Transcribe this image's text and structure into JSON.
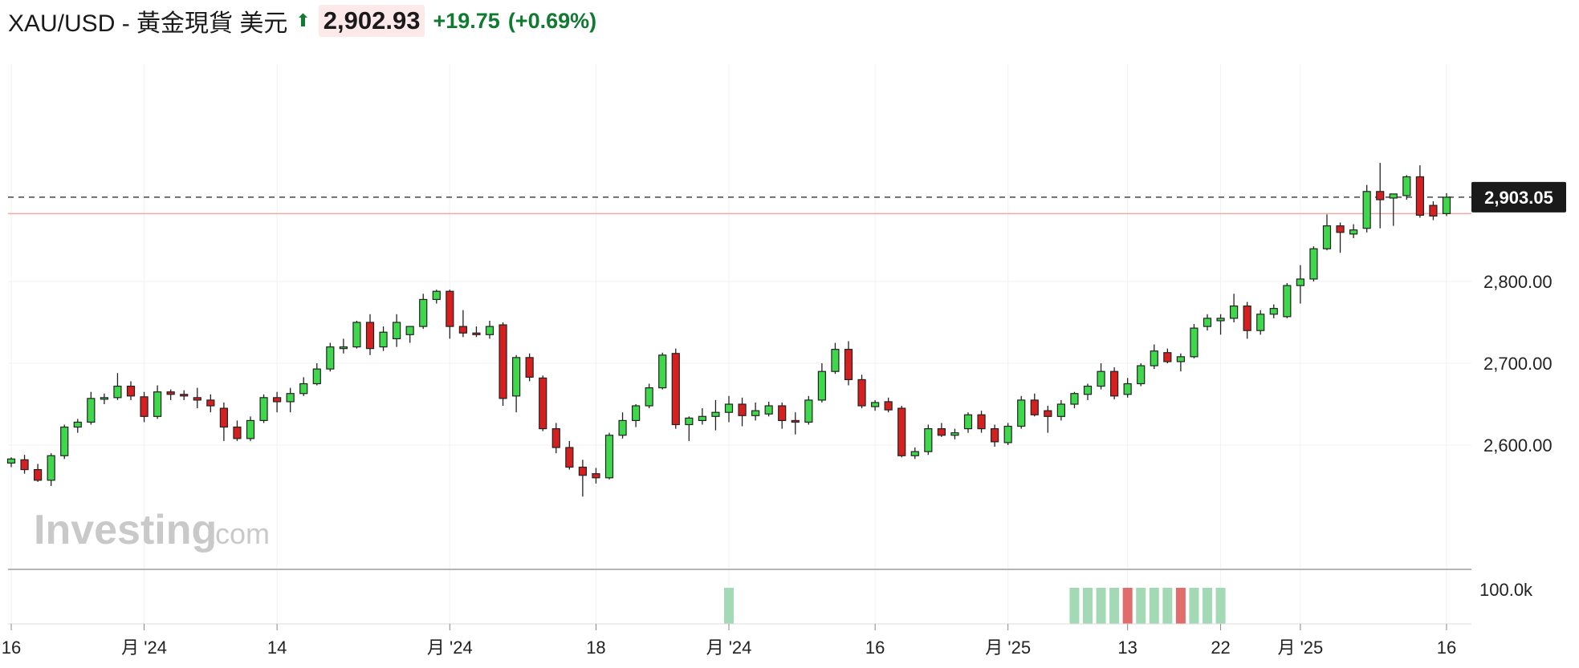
{
  "header": {
    "symbol": "XAU/USD - 黃金現貨 美元",
    "price": "2,902.93",
    "change": "+19.75",
    "change_pct": "(+0.69%)",
    "up_color": "#0f7a30",
    "arrow_icon": "up-arrow-icon"
  },
  "watermark": {
    "brand": "Investing",
    "suffix": ".com"
  },
  "chart_data": {
    "type": "candlestick",
    "ylim": [
      2515,
      2985
    ],
    "yticks": [
      2600,
      2700,
      2800
    ],
    "ytick_labels": [
      "2,600.00",
      "2,700.00",
      "2,800.00"
    ],
    "last_price": 2903.05,
    "last_price_label": "2,903.05",
    "prev_close": 2883,
    "x_tick_labels": [
      {
        "i": 0,
        "label": "16"
      },
      {
        "i": 10,
        "label": "月 '24"
      },
      {
        "i": 20,
        "label": "14"
      },
      {
        "i": 33,
        "label": "月 '24"
      },
      {
        "i": 44,
        "label": "18"
      },
      {
        "i": 54,
        "label": "月 '24"
      },
      {
        "i": 65,
        "label": "16"
      },
      {
        "i": 75,
        "label": "月 '25"
      },
      {
        "i": 84,
        "label": "13"
      },
      {
        "i": 91,
        "label": "22"
      },
      {
        "i": 97,
        "label": "月 '25"
      },
      {
        "i": 108,
        "label": "16"
      }
    ],
    "candles": [
      {
        "o": 2578,
        "h": 2585,
        "l": 2573,
        "c": 2583
      },
      {
        "o": 2582,
        "h": 2588,
        "l": 2565,
        "c": 2570
      },
      {
        "o": 2570,
        "h": 2577,
        "l": 2555,
        "c": 2557
      },
      {
        "o": 2557,
        "h": 2590,
        "l": 2550,
        "c": 2587
      },
      {
        "o": 2587,
        "h": 2625,
        "l": 2583,
        "c": 2622
      },
      {
        "o": 2622,
        "h": 2632,
        "l": 2615,
        "c": 2628
      },
      {
        "o": 2628,
        "h": 2665,
        "l": 2625,
        "c": 2657
      },
      {
        "o": 2657,
        "h": 2663,
        "l": 2650,
        "c": 2658
      },
      {
        "o": 2658,
        "h": 2688,
        "l": 2655,
        "c": 2672
      },
      {
        "o": 2672,
        "h": 2678,
        "l": 2655,
        "c": 2660
      },
      {
        "o": 2659,
        "h": 2665,
        "l": 2628,
        "c": 2635
      },
      {
        "o": 2635,
        "h": 2673,
        "l": 2632,
        "c": 2665
      },
      {
        "o": 2665,
        "h": 2668,
        "l": 2655,
        "c": 2662
      },
      {
        "o": 2662,
        "h": 2667,
        "l": 2655,
        "c": 2660
      },
      {
        "o": 2658,
        "h": 2670,
        "l": 2645,
        "c": 2655
      },
      {
        "o": 2655,
        "h": 2662,
        "l": 2640,
        "c": 2648
      },
      {
        "o": 2645,
        "h": 2652,
        "l": 2605,
        "c": 2622
      },
      {
        "o": 2622,
        "h": 2630,
        "l": 2605,
        "c": 2608
      },
      {
        "o": 2608,
        "h": 2635,
        "l": 2605,
        "c": 2630
      },
      {
        "o": 2630,
        "h": 2662,
        "l": 2627,
        "c": 2658
      },
      {
        "o": 2658,
        "h": 2665,
        "l": 2640,
        "c": 2653
      },
      {
        "o": 2653,
        "h": 2670,
        "l": 2640,
        "c": 2663
      },
      {
        "o": 2663,
        "h": 2683,
        "l": 2660,
        "c": 2675
      },
      {
        "o": 2675,
        "h": 2700,
        "l": 2673,
        "c": 2693
      },
      {
        "o": 2693,
        "h": 2725,
        "l": 2690,
        "c": 2720
      },
      {
        "o": 2718,
        "h": 2730,
        "l": 2712,
        "c": 2720
      },
      {
        "o": 2720,
        "h": 2752,
        "l": 2718,
        "c": 2750
      },
      {
        "o": 2750,
        "h": 2760,
        "l": 2710,
        "c": 2718
      },
      {
        "o": 2720,
        "h": 2745,
        "l": 2715,
        "c": 2738
      },
      {
        "o": 2730,
        "h": 2760,
        "l": 2720,
        "c": 2750
      },
      {
        "o": 2735,
        "h": 2745,
        "l": 2725,
        "c": 2745
      },
      {
        "o": 2745,
        "h": 2785,
        "l": 2742,
        "c": 2778
      },
      {
        "o": 2778,
        "h": 2790,
        "l": 2773,
        "c": 2788
      },
      {
        "o": 2788,
        "h": 2790,
        "l": 2730,
        "c": 2745
      },
      {
        "o": 2745,
        "h": 2765,
        "l": 2732,
        "c": 2737
      },
      {
        "o": 2737,
        "h": 2745,
        "l": 2732,
        "c": 2735
      },
      {
        "o": 2735,
        "h": 2752,
        "l": 2730,
        "c": 2745
      },
      {
        "o": 2747,
        "h": 2750,
        "l": 2648,
        "c": 2657
      },
      {
        "o": 2660,
        "h": 2710,
        "l": 2640,
        "c": 2707
      },
      {
        "o": 2707,
        "h": 2712,
        "l": 2678,
        "c": 2683
      },
      {
        "o": 2682,
        "h": 2685,
        "l": 2617,
        "c": 2620
      },
      {
        "o": 2620,
        "h": 2627,
        "l": 2590,
        "c": 2597
      },
      {
        "o": 2597,
        "h": 2605,
        "l": 2570,
        "c": 2573
      },
      {
        "o": 2573,
        "h": 2582,
        "l": 2537,
        "c": 2563
      },
      {
        "o": 2565,
        "h": 2572,
        "l": 2553,
        "c": 2560
      },
      {
        "o": 2560,
        "h": 2615,
        "l": 2558,
        "c": 2612
      },
      {
        "o": 2612,
        "h": 2640,
        "l": 2608,
        "c": 2630
      },
      {
        "o": 2630,
        "h": 2650,
        "l": 2622,
        "c": 2648
      },
      {
        "o": 2648,
        "h": 2675,
        "l": 2645,
        "c": 2670
      },
      {
        "o": 2670,
        "h": 2713,
        "l": 2668,
        "c": 2710
      },
      {
        "o": 2712,
        "h": 2718,
        "l": 2620,
        "c": 2625
      },
      {
        "o": 2625,
        "h": 2635,
        "l": 2605,
        "c": 2633
      },
      {
        "o": 2630,
        "h": 2645,
        "l": 2625,
        "c": 2635
      },
      {
        "o": 2635,
        "h": 2655,
        "l": 2618,
        "c": 2640
      },
      {
        "o": 2640,
        "h": 2660,
        "l": 2628,
        "c": 2650
      },
      {
        "o": 2650,
        "h": 2658,
        "l": 2623,
        "c": 2636
      },
      {
        "o": 2636,
        "h": 2652,
        "l": 2630,
        "c": 2642
      },
      {
        "o": 2638,
        "h": 2653,
        "l": 2635,
        "c": 2648
      },
      {
        "o": 2648,
        "h": 2652,
        "l": 2620,
        "c": 2630
      },
      {
        "o": 2630,
        "h": 2640,
        "l": 2613,
        "c": 2628
      },
      {
        "o": 2628,
        "h": 2660,
        "l": 2625,
        "c": 2655
      },
      {
        "o": 2655,
        "h": 2700,
        "l": 2652,
        "c": 2690
      },
      {
        "o": 2690,
        "h": 2725,
        "l": 2687,
        "c": 2717
      },
      {
        "o": 2717,
        "h": 2727,
        "l": 2673,
        "c": 2680
      },
      {
        "o": 2680,
        "h": 2686,
        "l": 2645,
        "c": 2648
      },
      {
        "o": 2647,
        "h": 2655,
        "l": 2642,
        "c": 2652
      },
      {
        "o": 2653,
        "h": 2658,
        "l": 2640,
        "c": 2643
      },
      {
        "o": 2645,
        "h": 2648,
        "l": 2585,
        "c": 2587
      },
      {
        "o": 2587,
        "h": 2597,
        "l": 2583,
        "c": 2592
      },
      {
        "o": 2592,
        "h": 2625,
        "l": 2588,
        "c": 2620
      },
      {
        "o": 2620,
        "h": 2627,
        "l": 2610,
        "c": 2612
      },
      {
        "o": 2612,
        "h": 2620,
        "l": 2607,
        "c": 2615
      },
      {
        "o": 2620,
        "h": 2640,
        "l": 2615,
        "c": 2637
      },
      {
        "o": 2637,
        "h": 2642,
        "l": 2615,
        "c": 2620
      },
      {
        "o": 2620,
        "h": 2625,
        "l": 2598,
        "c": 2604
      },
      {
        "o": 2603,
        "h": 2627,
        "l": 2600,
        "c": 2623
      },
      {
        "o": 2623,
        "h": 2660,
        "l": 2620,
        "c": 2655
      },
      {
        "o": 2655,
        "h": 2663,
        "l": 2635,
        "c": 2637
      },
      {
        "o": 2642,
        "h": 2648,
        "l": 2615,
        "c": 2635
      },
      {
        "o": 2635,
        "h": 2655,
        "l": 2630,
        "c": 2650
      },
      {
        "o": 2650,
        "h": 2665,
        "l": 2645,
        "c": 2663
      },
      {
        "o": 2662,
        "h": 2675,
        "l": 2655,
        "c": 2672
      },
      {
        "o": 2672,
        "h": 2700,
        "l": 2668,
        "c": 2690
      },
      {
        "o": 2690,
        "h": 2695,
        "l": 2656,
        "c": 2660
      },
      {
        "o": 2662,
        "h": 2682,
        "l": 2658,
        "c": 2675
      },
      {
        "o": 2675,
        "h": 2700,
        "l": 2672,
        "c": 2697
      },
      {
        "o": 2697,
        "h": 2723,
        "l": 2693,
        "c": 2715
      },
      {
        "o": 2713,
        "h": 2718,
        "l": 2700,
        "c": 2702
      },
      {
        "o": 2702,
        "h": 2712,
        "l": 2690,
        "c": 2708
      },
      {
        "o": 2708,
        "h": 2748,
        "l": 2706,
        "c": 2743
      },
      {
        "o": 2745,
        "h": 2760,
        "l": 2740,
        "c": 2755
      },
      {
        "o": 2752,
        "h": 2760,
        "l": 2735,
        "c": 2755
      },
      {
        "o": 2755,
        "h": 2785,
        "l": 2750,
        "c": 2770
      },
      {
        "o": 2770,
        "h": 2775,
        "l": 2730,
        "c": 2740
      },
      {
        "o": 2740,
        "h": 2765,
        "l": 2735,
        "c": 2760
      },
      {
        "o": 2760,
        "h": 2772,
        "l": 2755,
        "c": 2767
      },
      {
        "o": 2757,
        "h": 2798,
        "l": 2755,
        "c": 2795
      },
      {
        "o": 2795,
        "h": 2820,
        "l": 2773,
        "c": 2803
      },
      {
        "o": 2803,
        "h": 2843,
        "l": 2800,
        "c": 2840
      },
      {
        "o": 2840,
        "h": 2882,
        "l": 2838,
        "c": 2868
      },
      {
        "o": 2868,
        "h": 2872,
        "l": 2835,
        "c": 2860
      },
      {
        "o": 2858,
        "h": 2870,
        "l": 2853,
        "c": 2863
      },
      {
        "o": 2865,
        "h": 2918,
        "l": 2860,
        "c": 2910
      },
      {
        "o": 2910,
        "h": 2945,
        "l": 2865,
        "c": 2900
      },
      {
        "o": 2902,
        "h": 2905,
        "l": 2868,
        "c": 2907
      },
      {
        "o": 2905,
        "h": 2930,
        "l": 2900,
        "c": 2928
      },
      {
        "o": 2928,
        "h": 2942,
        "l": 2878,
        "c": 2881
      },
      {
        "o": 2893,
        "h": 2898,
        "l": 2875,
        "c": 2880
      },
      {
        "o": 2883,
        "h": 2908,
        "l": 2880,
        "c": 2903
      }
    ],
    "volume_label": "100.0k",
    "volume_bars": [
      {
        "i": 54,
        "dir": "up"
      },
      {
        "i": 80,
        "dir": "up"
      },
      {
        "i": 81,
        "dir": "up"
      },
      {
        "i": 82,
        "dir": "up"
      },
      {
        "i": 83,
        "dir": "up"
      },
      {
        "i": 84,
        "dir": "down"
      },
      {
        "i": 85,
        "dir": "up"
      },
      {
        "i": 86,
        "dir": "up"
      },
      {
        "i": 87,
        "dir": "up"
      },
      {
        "i": 88,
        "dir": "down"
      },
      {
        "i": 89,
        "dir": "up"
      },
      {
        "i": 90,
        "dir": "up"
      },
      {
        "i": 91,
        "dir": "up"
      }
    ],
    "colors": {
      "up": "#3fd74b",
      "down": "#d61f1f",
      "vol_up": "#a4d9b5",
      "vol_down": "#e06c6c",
      "prev_close_line": "#f0a8a8",
      "last_price_line": "#444444",
      "label_bg": "#1a1a1a"
    }
  }
}
